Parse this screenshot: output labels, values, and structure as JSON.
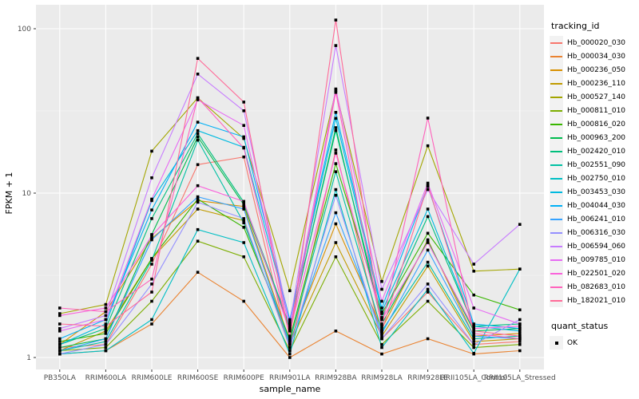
{
  "figure": {
    "panel_bg": "#EBEBEB",
    "grid_major_color": "#FFFFFF",
    "grid_minor_color": "#F7F7F7",
    "tick_color": "#333333",
    "tick_text_color": "#4D4D4D",
    "point_color": "#000000"
  },
  "chart_data": {
    "type": "line",
    "title": "",
    "xlabel": "sample_name",
    "ylabel": "FPKM + 1",
    "y_scale": "log10",
    "y_ticks": [
      1,
      10,
      100
    ],
    "y_tick_labels": [
      "1",
      "10",
      "100"
    ],
    "ylim": [
      1,
      130
    ],
    "grid": true,
    "legend_position": "right",
    "point_shape": "square",
    "categories": [
      "PB350LA",
      "RRIM600LA",
      "RRIM600LE",
      "RRIM600SE",
      "RRIM600PE",
      "RRIM901LA",
      "RRIM928BA",
      "RRIM928LA",
      "RRIM928LE",
      "RRII105LA_Control",
      "RRII105LA_Stressed"
    ],
    "series": [
      {
        "name": "Hb_000020_030",
        "color": "#F8766D",
        "values": [
          1.15,
          1.2,
          3.7,
          14.9,
          16.6,
          1.1,
          18.3,
          1.3,
          2.5,
          1.2,
          1.25
        ]
      },
      {
        "name": "Hb_000034_030",
        "color": "#EA8331",
        "values": [
          1.05,
          1.1,
          1.6,
          3.3,
          2.2,
          1.0,
          1.45,
          1.05,
          1.3,
          1.05,
          1.1
        ]
      },
      {
        "name": "Hb_000236_050",
        "color": "#D89000",
        "values": [
          1.2,
          1.9,
          5.3,
          9.0,
          8.3,
          1.25,
          6.5,
          1.5,
          5.2,
          1.35,
          1.4
        ]
      },
      {
        "name": "Hb_000236_110",
        "color": "#C09B00",
        "values": [
          1.1,
          1.45,
          4.0,
          8.0,
          6.8,
          1.2,
          5.0,
          1.35,
          3.6,
          1.25,
          1.3
        ]
      },
      {
        "name": "Hb_000527_140",
        "color": "#A3A500",
        "values": [
          1.85,
          2.1,
          18.0,
          38.0,
          21.5,
          2.55,
          42.0,
          2.9,
          19.4,
          3.35,
          3.45
        ]
      },
      {
        "name": "Hb_000811_010",
        "color": "#7CAE00",
        "values": [
          1.1,
          1.15,
          2.2,
          5.1,
          4.1,
          1.1,
          4.1,
          1.2,
          2.2,
          1.15,
          1.2
        ]
      },
      {
        "name": "Hb_000816_020",
        "color": "#39B600",
        "values": [
          1.25,
          1.4,
          4.0,
          9.2,
          6.2,
          1.3,
          15.1,
          1.85,
          5.7,
          2.4,
          1.95
        ]
      },
      {
        "name": "Hb_000963_200",
        "color": "#00BB4E",
        "values": [
          1.15,
          1.3,
          5.6,
          22.0,
          8.5,
          1.5,
          25.0,
          1.6,
          5.1,
          1.45,
          1.5
        ]
      },
      {
        "name": "Hb_002420_010",
        "color": "#00BF7D",
        "values": [
          1.2,
          1.5,
          7.0,
          23.0,
          8.8,
          1.55,
          24.0,
          1.75,
          7.2,
          1.55,
          1.6
        ]
      },
      {
        "name": "Hb_002551_090",
        "color": "#00C1A3",
        "values": [
          1.1,
          1.25,
          3.9,
          21.0,
          6.6,
          1.25,
          13.5,
          1.45,
          3.8,
          1.3,
          1.35
        ]
      },
      {
        "name": "Hb_002750_010",
        "color": "#00BFC4",
        "values": [
          1.05,
          1.1,
          1.7,
          6.0,
          5.0,
          1.05,
          10.5,
          1.15,
          2.6,
          1.06,
          3.45
        ]
      },
      {
        "name": "Hb_003453_030",
        "color": "#00BAE0",
        "values": [
          1.2,
          1.6,
          9.0,
          24.0,
          19.0,
          1.65,
          28.5,
          1.9,
          8.0,
          1.55,
          1.45
        ]
      },
      {
        "name": "Hb_004044_030",
        "color": "#00B0F6",
        "values": [
          1.3,
          1.7,
          7.9,
          27.0,
          22.0,
          1.7,
          31.0,
          2.0,
          11.0,
          1.6,
          1.5
        ]
      },
      {
        "name": "Hb_006241_010",
        "color": "#35A2FF",
        "values": [
          1.1,
          1.3,
          5.2,
          9.5,
          8.0,
          1.2,
          7.6,
          1.4,
          4.5,
          1.35,
          1.3
        ]
      },
      {
        "name": "Hb_006316_030",
        "color": "#9590FF",
        "values": [
          1.05,
          1.2,
          2.8,
          8.8,
          7.0,
          1.15,
          9.7,
          1.3,
          2.8,
          1.2,
          1.7
        ]
      },
      {
        "name": "Hb_006594_060",
        "color": "#C77CFF",
        "values": [
          1.5,
          1.8,
          12.4,
          53.0,
          31.7,
          1.6,
          79.0,
          2.6,
          10.5,
          3.7,
          6.45
        ]
      },
      {
        "name": "Hb_009785_010",
        "color": "#E76BF3",
        "values": [
          1.45,
          1.7,
          9.2,
          37.0,
          25.8,
          1.5,
          43.0,
          2.2,
          11.5,
          2.0,
          1.6
        ]
      },
      {
        "name": "Hb_022501_020",
        "color": "#FA62DB",
        "values": [
          1.8,
          2.0,
          5.5,
          11.1,
          8.9,
          1.45,
          17.5,
          1.7,
          5.0,
          1.5,
          1.55
        ]
      },
      {
        "name": "Hb_082683_010",
        "color": "#FF62BC",
        "values": [
          2.0,
          1.9,
          3.0,
          38.0,
          18.8,
          1.35,
          41.0,
          1.55,
          28.6,
          1.4,
          1.3
        ]
      },
      {
        "name": "Hb_182021_010",
        "color": "#FF6A98",
        "values": [
          1.6,
          1.55,
          2.5,
          66.0,
          35.8,
          1.3,
          113.0,
          1.45,
          11.2,
          1.45,
          1.35
        ]
      }
    ]
  },
  "legend": {
    "tracking_title": "tracking_id",
    "quant_title": "quant_status",
    "quant_items": [
      {
        "label": "OK"
      }
    ]
  }
}
